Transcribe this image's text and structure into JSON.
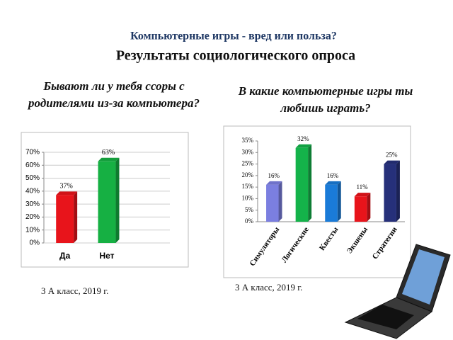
{
  "header": {
    "title": "Компьютерные игры -  вред или польза?",
    "subtitle": "Результаты социологического опроса"
  },
  "chart_data": [
    {
      "type": "bar",
      "title": "Бываю­т ли у тебя ссоры с родителями из-за компьютера?",
      "categories": [
        "Да",
        "Нет"
      ],
      "values": [
        37,
        63
      ],
      "value_labels": [
        "37%",
        "63%"
      ],
      "colors": [
        "#e8141b",
        "#16b043"
      ],
      "ylim": [
        0,
        70
      ],
      "yticks": [
        {
          "value": 0,
          "label": "0%"
        },
        {
          "value": 10,
          "label": "10%"
        },
        {
          "value": 20,
          "label": "20%"
        },
        {
          "value": 30,
          "label": "30%"
        },
        {
          "value": 40,
          "label": "40%"
        },
        {
          "value": 50,
          "label": "50%"
        },
        {
          "value": 60,
          "label": "60%"
        },
        {
          "value": 70,
          "label": "70%"
        }
      ],
      "grid": true,
      "annotation": "3 А класс, 2019 г."
    },
    {
      "type": "bar",
      "title": "В какие компьютерные игры ты любишь играть?",
      "categories": [
        "Симуляторы",
        "Логические",
        "Квесты",
        "Экшены",
        "Стратегии"
      ],
      "values": [
        16,
        32,
        16,
        11,
        25
      ],
      "value_labels": [
        "16%",
        "32%",
        "16%",
        "11%",
        "25%"
      ],
      "colors": [
        "#7b7fe0",
        "#14b34a",
        "#1a7bd8",
        "#e8141b",
        "#26307a"
      ],
      "ylim": [
        0,
        35
      ],
      "yticks": [
        {
          "value": 0,
          "label": "0%"
        },
        {
          "value": 5,
          "label": "5%"
        },
        {
          "value": 10,
          "label": "10%"
        },
        {
          "value": 15,
          "label": "15%"
        },
        {
          "value": 20,
          "label": "20%"
        },
        {
          "value": 25,
          "label": "25%"
        },
        {
          "value": 30,
          "label": "30%"
        },
        {
          "value": 35,
          "label": "35%"
        }
      ],
      "grid": false,
      "annotation": "3 А класс, 2019 г."
    }
  ]
}
